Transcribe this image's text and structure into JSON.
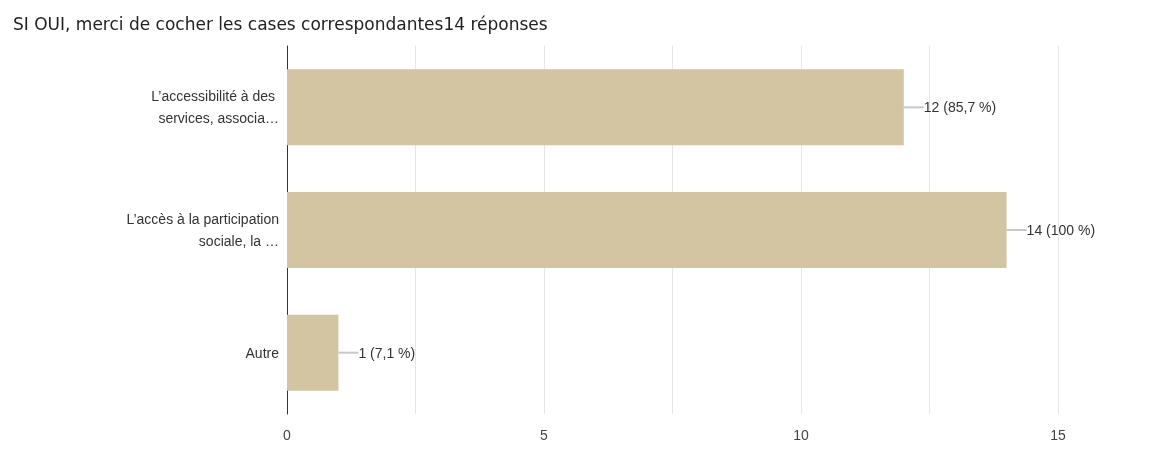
{
  "chart_data": {
    "type": "bar",
    "orientation": "horizontal",
    "title": "SI OUI, merci de cocher les cases correspondantes14 réponses",
    "categories": [
      "L’accessibilité à des services, associa…",
      "L’accès à la participation sociale, la …",
      "Autre"
    ],
    "values": [
      12,
      14,
      1
    ],
    "color": "#d3c4a2",
    "value_labels": [
      "12 (85,7 %)",
      "14 (100 %)",
      "1 (7,1 %)"
    ],
    "xlim": [
      0,
      15
    ],
    "xticks": [
      0,
      {
        "value": 2.5,
        "label": null
      },
      5,
      {
        "value": 7.5,
        "label": null
      },
      10,
      {
        "value": 12.5,
        "label": null
      },
      15
    ],
    "grid": "x"
  }
}
